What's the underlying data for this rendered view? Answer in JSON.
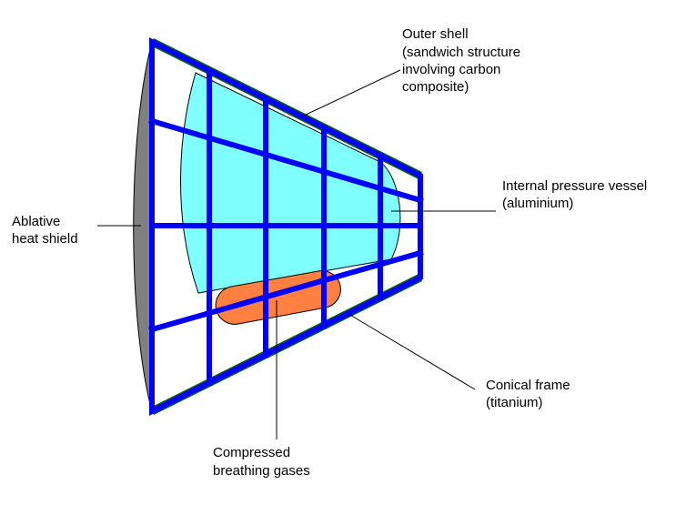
{
  "labels": {
    "outer_shell": [
      "Outer shell",
      "(sandwich structure",
      "involving carbon",
      "composite)"
    ],
    "pressure_vessel": [
      "Internal pressure vessel",
      "(aluminium)"
    ],
    "heat_shield": [
      "Ablative",
      "heat shield"
    ],
    "conical_frame": [
      "Conical frame",
      "(titanium)"
    ],
    "gases": [
      "Compressed",
      "breathing gases"
    ]
  },
  "colors": {
    "frame": "#0000ff",
    "pressure_vessel": "#80ffff",
    "heat_shield": "#808080",
    "gas_tank": "#ff8040",
    "outer_shell_edge": "#006600",
    "leader_line": "#000000"
  }
}
